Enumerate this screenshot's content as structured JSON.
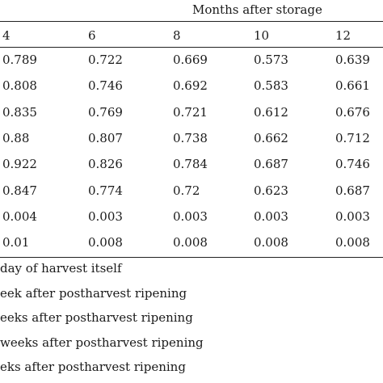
{
  "table": {
    "group_header": "Months after storage",
    "columns": [
      "4",
      "6",
      "8",
      "10",
      "12"
    ],
    "rows": [
      [
        "0.789",
        "0.722",
        "0.669",
        "0.573",
        "0.639"
      ],
      [
        "0.808",
        "0.746",
        "0.692",
        "0.583",
        "0.661"
      ],
      [
        "0.835",
        "0.769",
        "0.721",
        "0.612",
        "0.676"
      ],
      [
        "0.88",
        "0.807",
        "0.738",
        "0.662",
        "0.712"
      ],
      [
        "0.922",
        "0.826",
        "0.784",
        "0.687",
        "0.746"
      ],
      [
        "0.847",
        "0.774",
        "0.72",
        "0.623",
        "0.687"
      ],
      [
        "0.004",
        "0.003",
        "0.003",
        "0.003",
        "0.003"
      ],
      [
        "0.01",
        "0.008",
        "0.008",
        "0.008",
        "0.008"
      ]
    ]
  },
  "footnotes": [
    " day of harvest itself",
    "eek after postharvest ripening",
    "eeks after postharvest ripening",
    "weeks after postharvest ripening",
    "eks after postharvest ripening"
  ]
}
